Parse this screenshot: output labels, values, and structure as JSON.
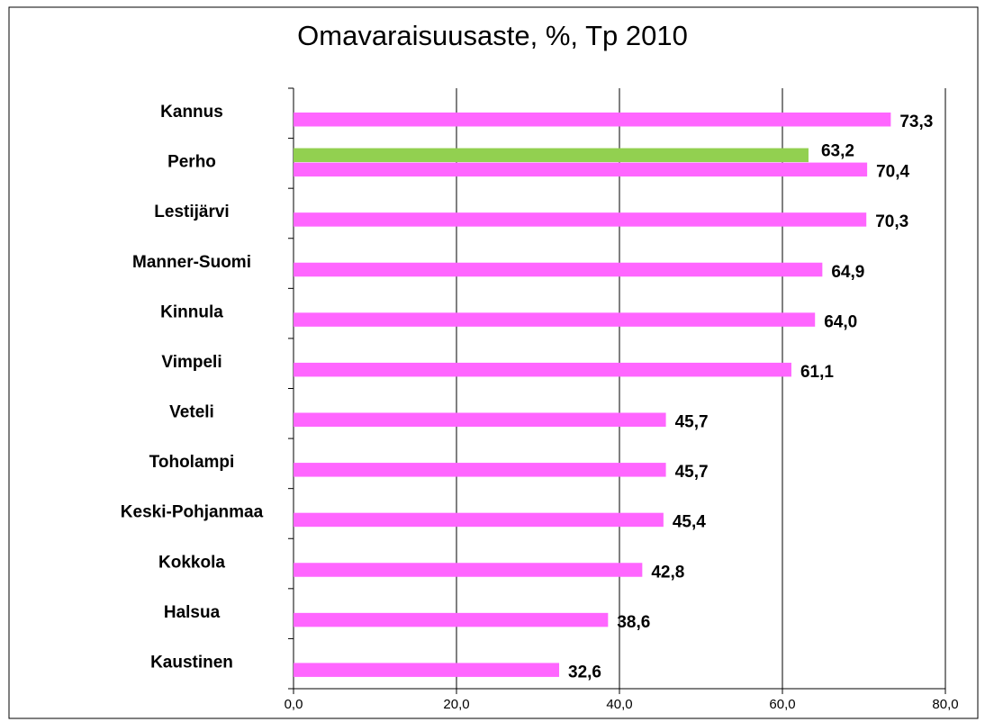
{
  "chart_data": {
    "type": "bar",
    "orientation": "horizontal",
    "title": "Omavaraisuusaste, %, Tp 2010",
    "categories": [
      "Kannus",
      "Perho",
      "Lestijärvi",
      "Manner-Suomi",
      "Kinnula",
      "Vimpeli",
      "Veteli",
      "Toholampi",
      "Keski-Pohjanmaa",
      "Kokkola",
      "Halsua",
      "Kaustinen"
    ],
    "series": [
      {
        "color": "#92d050",
        "values": [
          null,
          63.2,
          null,
          null,
          null,
          null,
          null,
          null,
          null,
          null,
          null,
          null
        ],
        "value_labels": [
          null,
          "63,2",
          null,
          null,
          null,
          null,
          null,
          null,
          null,
          null,
          null,
          null
        ]
      },
      {
        "color": "#ff66ff",
        "values": [
          73.3,
          70.4,
          70.3,
          64.9,
          64.0,
          61.1,
          45.7,
          45.7,
          45.4,
          42.8,
          38.6,
          32.6
        ],
        "value_labels": [
          "73,3",
          "70,4",
          "70,3",
          "64,9",
          "64,0",
          "61,1",
          "45,7",
          "45,7",
          "45,4",
          "42,8",
          "38,6",
          "32,6"
        ]
      }
    ],
    "xlim": [
      0,
      80
    ],
    "xticks": [
      {
        "value": 0,
        "label": "0,0"
      },
      {
        "value": 20,
        "label": "20,0"
      },
      {
        "value": 40,
        "label": "40,0"
      },
      {
        "value": 60,
        "label": "60,0"
      },
      {
        "value": 80,
        "label": "80,0"
      }
    ],
    "grid": true
  }
}
